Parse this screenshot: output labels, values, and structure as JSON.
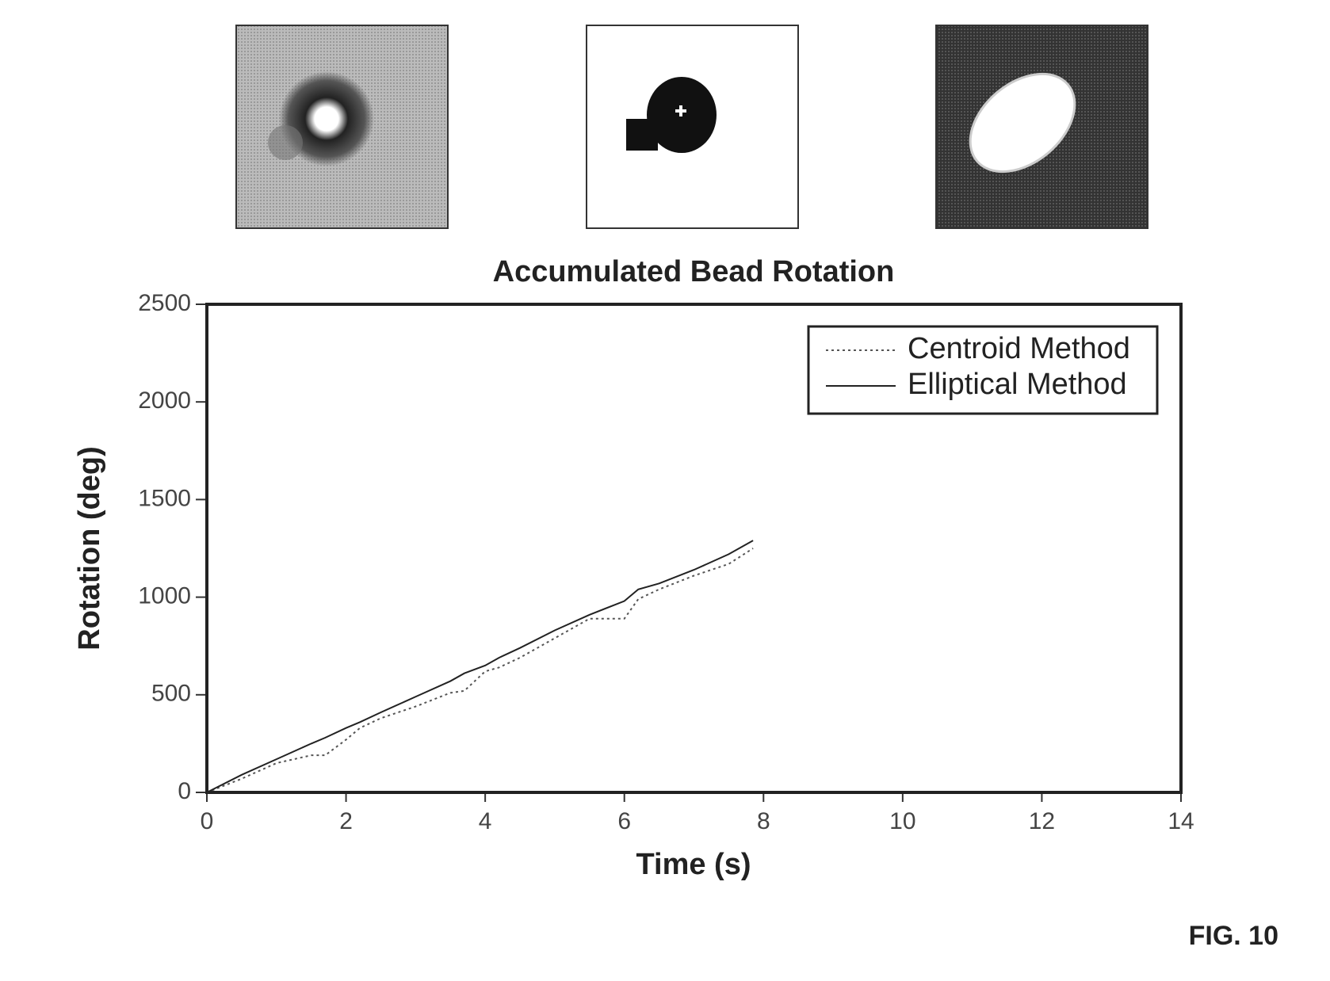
{
  "chart_data": {
    "type": "line",
    "title": "Accumulated Bead Rotation",
    "x_label": "Time (s)",
    "y_label": "Rotation (deg)",
    "x": [
      0,
      0.5,
      1,
      1.5,
      1.7,
      2,
      2.2,
      2.5,
      3,
      3.5,
      3.7,
      4,
      4.2,
      4.5,
      5,
      5.5,
      6,
      6.2,
      6.5,
      7,
      7.5,
      7.85
    ],
    "series": [
      {
        "name": "Centroid Method",
        "color": "#555555",
        "dash": "dotted",
        "values": [
          0,
          70,
          150,
          190,
          190,
          270,
          330,
          380,
          440,
          510,
          520,
          620,
          640,
          690,
          790,
          890,
          890,
          990,
          1040,
          1110,
          1170,
          1250
        ]
      },
      {
        "name": "Elliptical Method",
        "color": "#222222",
        "dash": "solid",
        "values": [
          0,
          90,
          170,
          250,
          280,
          330,
          360,
          410,
          490,
          570,
          610,
          650,
          690,
          740,
          830,
          910,
          980,
          1040,
          1070,
          1140,
          1220,
          1290
        ]
      }
    ],
    "xlim": [
      0,
      14
    ],
    "xticks": [
      0,
      2,
      4,
      6,
      8,
      10,
      12,
      14
    ],
    "ylim": [
      0,
      2500
    ],
    "yticks": [
      0,
      500,
      1000,
      1500,
      2000,
      2500
    ],
    "grid": false,
    "legend": "upper right"
  },
  "figure_label": "FIG. 10"
}
